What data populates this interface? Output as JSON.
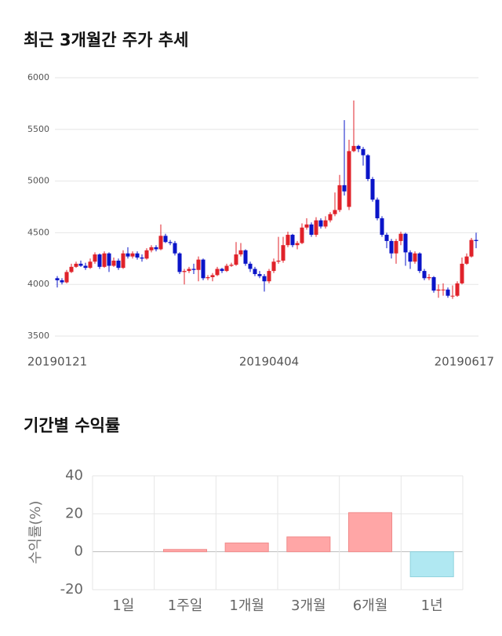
{
  "chart_data": [
    {
      "type": "candlestick",
      "title": "최근 3개월간 주가 추세",
      "categories": [
        "20190121",
        null,
        null,
        null,
        null,
        null,
        null,
        null,
        null,
        null,
        null,
        null,
        null,
        null,
        null,
        null,
        null,
        null,
        null,
        null,
        null,
        null,
        null,
        null,
        null,
        null,
        null,
        null,
        null,
        null,
        null,
        null,
        null,
        null,
        null,
        null,
        null,
        null,
        null,
        null,
        null,
        null,
        null,
        null,
        null,
        "20190404",
        null,
        null,
        null,
        null,
        null,
        null,
        null,
        null,
        null,
        null,
        null,
        null,
        null,
        null,
        null,
        null,
        null,
        null,
        null,
        null,
        null,
        null,
        null,
        null,
        null,
        null,
        null,
        null,
        null,
        null,
        null,
        null,
        null,
        null,
        null,
        null,
        null,
        null,
        null,
        null,
        null,
        null,
        null,
        "20190617"
      ],
      "open": [
        4060,
        4040,
        4020,
        4120,
        4170,
        4200,
        4180,
        4160,
        4220,
        4290,
        4170,
        4300,
        4180,
        4230,
        4160,
        4300,
        4270,
        4300,
        4260,
        4250,
        4330,
        4360,
        4340,
        4470,
        4410,
        4400,
        4300,
        4120,
        4130,
        4150,
        4140,
        4240,
        4060,
        4070,
        4090,
        4150,
        4130,
        4180,
        4190,
        4290,
        4330,
        4200,
        4150,
        4100,
        4080,
        4030,
        4130,
        4220,
        4230,
        4380,
        4480,
        4380,
        4400,
        4550,
        4580,
        4480,
        4620,
        4560,
        4620,
        4680,
        4720,
        4960,
        4750,
        5290,
        5340,
        5310,
        5250,
        5020,
        4820,
        4640,
        4480,
        4420,
        4300,
        4420,
        4490,
        4310,
        4220,
        4300,
        4130,
        4060,
        4070,
        3940,
        3950,
        3950,
        3890,
        3890,
        4010,
        4200,
        4270,
        4430
      ],
      "high": [
        4080,
        4060,
        4140,
        4200,
        4220,
        4230,
        4210,
        4250,
        4310,
        4300,
        4320,
        4310,
        4260,
        4250,
        4330,
        4360,
        4320,
        4320,
        4290,
        4350,
        4380,
        4380,
        4580,
        4490,
        4430,
        4420,
        4310,
        4150,
        4170,
        4200,
        4270,
        4250,
        4090,
        4110,
        4170,
        4160,
        4200,
        4210,
        4410,
        4400,
        4340,
        4220,
        4170,
        4130,
        4100,
        4150,
        4250,
        4460,
        4460,
        4510,
        4490,
        4420,
        4590,
        4640,
        4600,
        4650,
        4640,
        4660,
        4700,
        4890,
        5060,
        5590,
        5400,
        5780,
        5350,
        5330,
        5260,
        5040,
        4840,
        4660,
        4500,
        4440,
        4440,
        4510,
        4500,
        4330,
        4320,
        4310,
        4150,
        4100,
        4080,
        4000,
        4010,
        3970,
        3990,
        4030,
        4260,
        4300,
        4450,
        4500
      ],
      "low": [
        3970,
        4000,
        4010,
        4110,
        4160,
        4170,
        4140,
        4150,
        4200,
        4150,
        4160,
        4120,
        4170,
        4140,
        4150,
        4250,
        4250,
        4240,
        4220,
        4240,
        4310,
        4320,
        4330,
        4400,
        4380,
        4280,
        4100,
        4000,
        4110,
        4100,
        4030,
        4040,
        4040,
        4030,
        4080,
        4110,
        4120,
        4170,
        4180,
        4270,
        4180,
        4120,
        4080,
        4060,
        3930,
        4010,
        4110,
        4200,
        4210,
        4360,
        4360,
        4340,
        4390,
        4530,
        4460,
        4460,
        4540,
        4540,
        4600,
        4660,
        4700,
        4860,
        4720,
        5280,
        5280,
        5150,
        5000,
        4800,
        4620,
        4460,
        4350,
        4250,
        4200,
        4380,
        4180,
        4150,
        4200,
        4110,
        4040,
        4040,
        3920,
        3870,
        3890,
        3870,
        3860,
        3880,
        4000,
        4190,
        4260,
        4350
      ],
      "close": [
        4040,
        4020,
        4120,
        4170,
        4200,
        4180,
        4160,
        4220,
        4290,
        4170,
        4300,
        4180,
        4230,
        4160,
        4300,
        4270,
        4300,
        4260,
        4250,
        4330,
        4360,
        4340,
        4470,
        4410,
        4400,
        4300,
        4120,
        4130,
        4150,
        4140,
        4240,
        4060,
        4070,
        4090,
        4150,
        4130,
        4180,
        4190,
        4290,
        4330,
        4200,
        4150,
        4100,
        4080,
        4030,
        4130,
        4220,
        4230,
        4380,
        4480,
        4380,
        4400,
        4550,
        4580,
        4480,
        4620,
        4560,
        4620,
        4680,
        4720,
        4960,
        4900,
        5290,
        5340,
        5310,
        5250,
        5020,
        4820,
        4640,
        4480,
        4420,
        4300,
        4420,
        4490,
        4310,
        4220,
        4300,
        4130,
        4060,
        4070,
        3940,
        3950,
        3950,
        3890,
        3890,
        4010,
        4200,
        4270,
        4430,
        4420
      ],
      "up_color": "#e0222a",
      "down_color": "#0a14c8",
      "ylim": [
        3500,
        6000
      ],
      "yticks": [
        3500,
        4000,
        4500,
        5000,
        5500,
        6000
      ],
      "grid": true
    },
    {
      "type": "bar",
      "title": "기간별 수익률",
      "y_label": "수익률(%)",
      "categories": [
        "1일",
        "1주일",
        "1개월",
        "3개월",
        "6개월",
        "1년"
      ],
      "values": [
        0,
        1.2,
        4.6,
        7.8,
        20.6,
        -13.2
      ],
      "positive_color": "#ffa6a6",
      "negative_color": "#b0e8f2",
      "ylim": [
        -20,
        40
      ],
      "yticks": [
        -20,
        0,
        20,
        40
      ],
      "grid": true
    }
  ]
}
